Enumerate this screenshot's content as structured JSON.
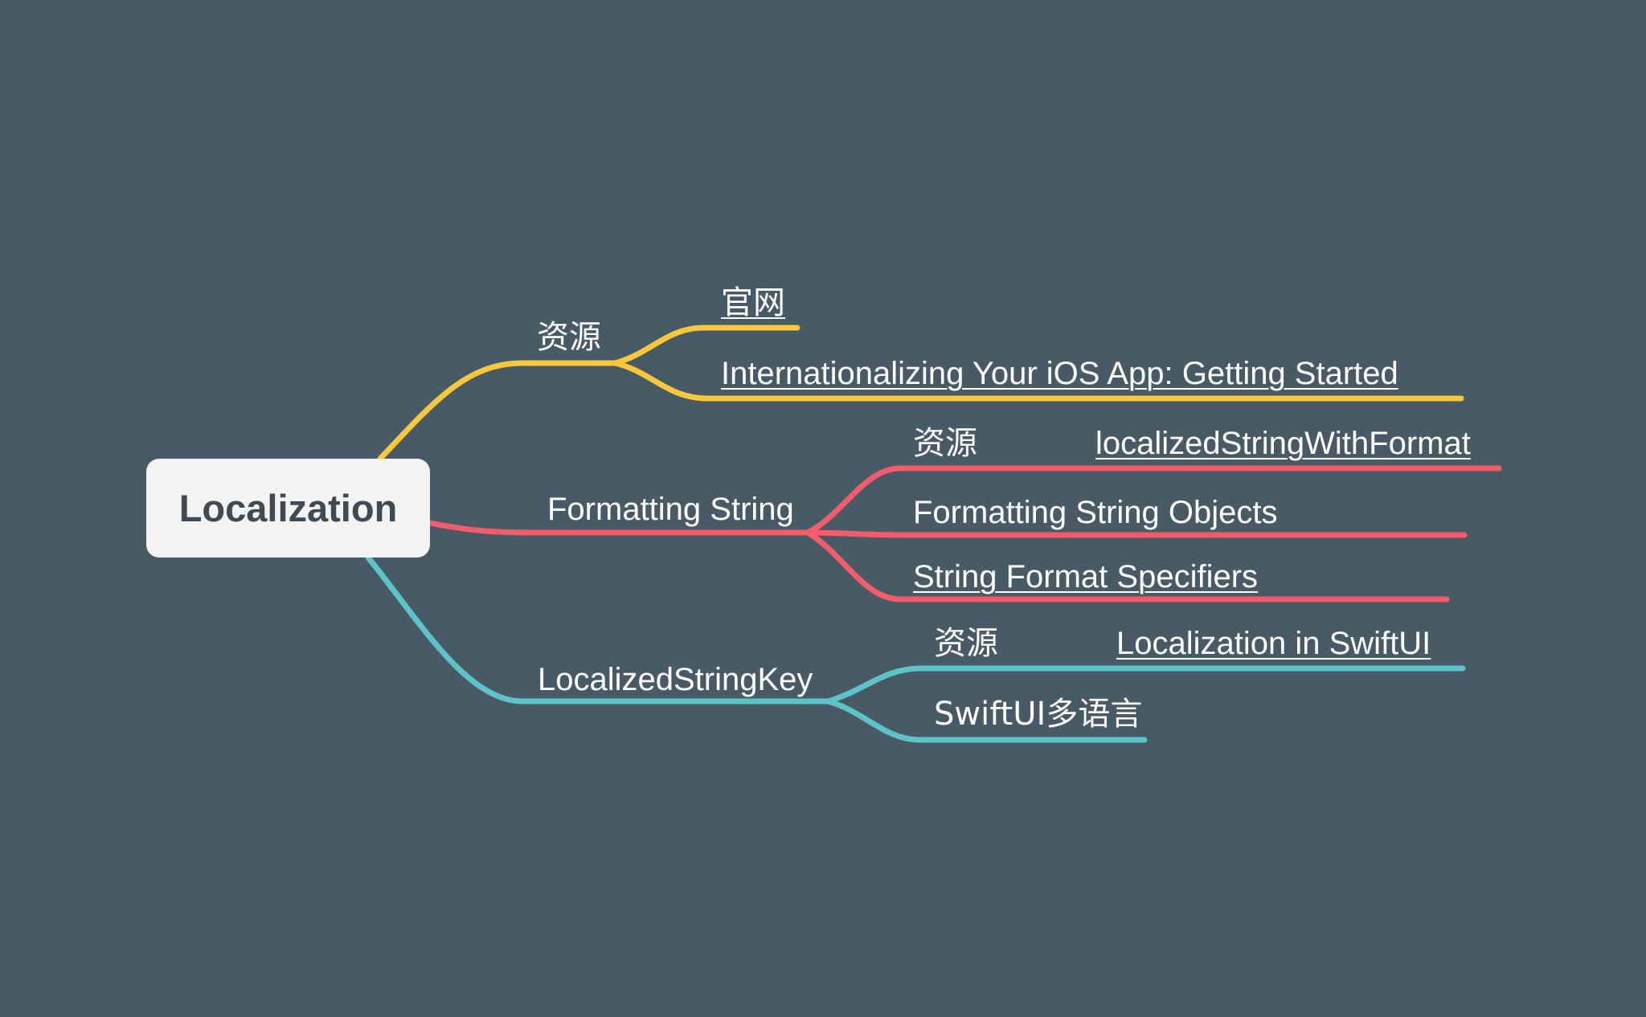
{
  "colors": {
    "background": "#475a66",
    "root_fill": "#f3f3f3",
    "root_text": "#3f4a52",
    "branch_resources": "#f8c73b",
    "branch_formatting": "#f35c6b",
    "branch_key": "#5cc4c9",
    "label_text": "#ffffff"
  },
  "root": {
    "label": "Localization"
  },
  "branches": {
    "resources": {
      "label": "资源",
      "children": {
        "official": {
          "label": "官网"
        },
        "tutorial": {
          "label": "Internationalizing Your iOS App: Getting Started"
        }
      }
    },
    "formatting": {
      "label": "Formatting String",
      "children": {
        "resources": {
          "label": "资源",
          "link": "localizedStringWithFormat"
        },
        "objects": {
          "label": "Formatting String Objects"
        },
        "specifiers": {
          "label": "String Format Specifiers"
        }
      }
    },
    "key": {
      "label": "LocalizedStringKey",
      "children": {
        "resources": {
          "label": "资源",
          "link": "Localization in SwiftUI"
        },
        "multilang": {
          "label": "SwiftUI多语言"
        }
      }
    }
  }
}
